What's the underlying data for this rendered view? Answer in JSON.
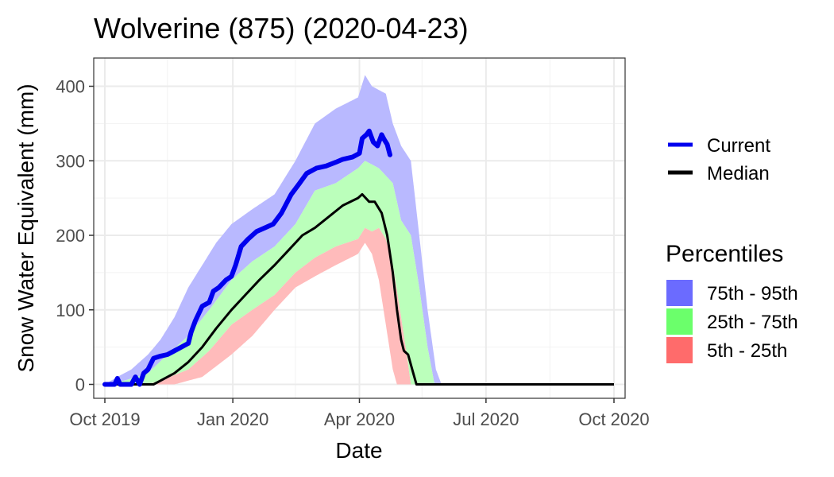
{
  "chart_data": {
    "type": "area",
    "title": "Wolverine (875) (2020-04-23)",
    "xlabel": "Date",
    "ylabel": "Snow Water Equivalent (mm)",
    "xlim": [
      "2019-10-01",
      "2020-10-01"
    ],
    "ylim": [
      0,
      440
    ],
    "x_ticks": [
      "2019-10-01",
      "2020-01-01",
      "2020-04-01",
      "2020-07-01",
      "2020-10-01"
    ],
    "x_tick_labels": [
      "Oct 2019",
      "Jan 2020",
      "Apr 2020",
      "Jul 2020",
      "Oct 2020"
    ],
    "y_ticks": [
      0,
      100,
      200,
      300,
      400
    ],
    "y_tick_labels": [
      "0",
      "100",
      "200",
      "300",
      "400"
    ],
    "grid": true,
    "legend_placement": "right",
    "legend_lines": [
      {
        "label": "Current",
        "color": "#0000ee"
      },
      {
        "label": "Median",
        "color": "#000000"
      }
    ],
    "legend_bands_title": "Percentiles",
    "legend_bands": [
      {
        "label": "75th - 95th",
        "color": "#6b6bff"
      },
      {
        "label": "25th - 75th",
        "color": "#6bff6b"
      },
      {
        "label": "5th - 25th",
        "color": "#ff6b6b"
      }
    ],
    "band_colors": {
      "p95_p75": "#b9b9ff",
      "p75_p25": "#bbffbb",
      "p25_p5": "#ffbbbb"
    },
    "series": [
      {
        "name": "Current",
        "color": "#0000ee",
        "points": [
          [
            "2019-10-01",
            0
          ],
          [
            "2019-10-08",
            0
          ],
          [
            "2019-10-10",
            8
          ],
          [
            "2019-10-12",
            0
          ],
          [
            "2019-10-15",
            0
          ],
          [
            "2019-10-20",
            0
          ],
          [
            "2019-10-23",
            10
          ],
          [
            "2019-10-26",
            0
          ],
          [
            "2019-10-29",
            15
          ],
          [
            "2019-11-01",
            20
          ],
          [
            "2019-11-05",
            35
          ],
          [
            "2019-11-10",
            38
          ],
          [
            "2019-11-15",
            40
          ],
          [
            "2019-11-20",
            45
          ],
          [
            "2019-11-25",
            50
          ],
          [
            "2019-11-30",
            55
          ],
          [
            "2019-12-02",
            70
          ],
          [
            "2019-12-05",
            85
          ],
          [
            "2019-12-10",
            105
          ],
          [
            "2019-12-15",
            110
          ],
          [
            "2019-12-18",
            125
          ],
          [
            "2019-12-22",
            130
          ],
          [
            "2019-12-27",
            140
          ],
          [
            "2019-12-31",
            145
          ],
          [
            "2020-01-03",
            160
          ],
          [
            "2020-01-07",
            185
          ],
          [
            "2020-01-12",
            195
          ],
          [
            "2020-01-18",
            205
          ],
          [
            "2020-01-24",
            210
          ],
          [
            "2020-01-30",
            215
          ],
          [
            "2020-02-05",
            230
          ],
          [
            "2020-02-12",
            255
          ],
          [
            "2020-02-18",
            270
          ],
          [
            "2020-02-23",
            283
          ],
          [
            "2020-03-01",
            290
          ],
          [
            "2020-03-08",
            293
          ],
          [
            "2020-03-15",
            298
          ],
          [
            "2020-03-20",
            302
          ],
          [
            "2020-03-27",
            305
          ],
          [
            "2020-04-01",
            310
          ],
          [
            "2020-04-03",
            330
          ],
          [
            "2020-04-06",
            335
          ],
          [
            "2020-04-08",
            340
          ],
          [
            "2020-04-11",
            325
          ],
          [
            "2020-04-14",
            320
          ],
          [
            "2020-04-17",
            335
          ],
          [
            "2020-04-19",
            328
          ],
          [
            "2020-04-21",
            322
          ],
          [
            "2020-04-23",
            308
          ]
        ]
      },
      {
        "name": "Median",
        "color": "#000000",
        "points": [
          [
            "2019-10-01",
            0
          ],
          [
            "2019-11-05",
            0
          ],
          [
            "2019-11-10",
            5
          ],
          [
            "2019-11-20",
            15
          ],
          [
            "2019-11-30",
            30
          ],
          [
            "2019-12-10",
            50
          ],
          [
            "2019-12-20",
            75
          ],
          [
            "2019-12-31",
            100
          ],
          [
            "2020-01-10",
            120
          ],
          [
            "2020-01-20",
            140
          ],
          [
            "2020-01-31",
            160
          ],
          [
            "2020-02-10",
            180
          ],
          [
            "2020-02-20",
            200
          ],
          [
            "2020-02-29",
            210
          ],
          [
            "2020-03-10",
            225
          ],
          [
            "2020-03-20",
            240
          ],
          [
            "2020-03-31",
            250
          ],
          [
            "2020-04-03",
            255
          ],
          [
            "2020-04-08",
            245
          ],
          [
            "2020-04-12",
            245
          ],
          [
            "2020-04-17",
            230
          ],
          [
            "2020-04-21",
            200
          ],
          [
            "2020-04-25",
            150
          ],
          [
            "2020-04-28",
            100
          ],
          [
            "2020-05-01",
            60
          ],
          [
            "2020-05-03",
            45
          ],
          [
            "2020-05-06",
            40
          ],
          [
            "2020-05-09",
            20
          ],
          [
            "2020-05-12",
            0
          ],
          [
            "2020-10-01",
            0
          ]
        ]
      }
    ],
    "bands": {
      "p95": [
        [
          "2019-10-01",
          0
        ],
        [
          "2019-10-10",
          10
        ],
        [
          "2019-10-20",
          20
        ],
        [
          "2019-11-01",
          40
        ],
        [
          "2019-11-10",
          60
        ],
        [
          "2019-11-20",
          90
        ],
        [
          "2019-11-30",
          130
        ],
        [
          "2019-12-10",
          160
        ],
        [
          "2019-12-20",
          190
        ],
        [
          "2019-12-31",
          215
        ],
        [
          "2020-01-15",
          235
        ],
        [
          "2020-01-31",
          255
        ],
        [
          "2020-02-15",
          300
        ],
        [
          "2020-02-29",
          350
        ],
        [
          "2020-03-15",
          370
        ],
        [
          "2020-03-31",
          385
        ],
        [
          "2020-04-05",
          415
        ],
        [
          "2020-04-10",
          400
        ],
        [
          "2020-04-20",
          390
        ],
        [
          "2020-04-25",
          350
        ],
        [
          "2020-05-01",
          320
        ],
        [
          "2020-05-08",
          300
        ],
        [
          "2020-05-14",
          200
        ],
        [
          "2020-05-20",
          100
        ],
        [
          "2020-05-26",
          20
        ],
        [
          "2020-05-30",
          0
        ],
        [
          "2020-10-01",
          0
        ]
      ],
      "p75": [
        [
          "2019-10-01",
          0
        ],
        [
          "2019-10-15",
          5
        ],
        [
          "2019-11-01",
          15
        ],
        [
          "2019-11-15",
          40
        ],
        [
          "2019-11-30",
          65
        ],
        [
          "2019-12-15",
          100
        ],
        [
          "2019-12-31",
          140
        ],
        [
          "2020-01-15",
          165
        ],
        [
          "2020-01-31",
          185
        ],
        [
          "2020-02-15",
          215
        ],
        [
          "2020-02-29",
          260
        ],
        [
          "2020-03-15",
          270
        ],
        [
          "2020-03-31",
          290
        ],
        [
          "2020-04-05",
          300
        ],
        [
          "2020-04-15",
          290
        ],
        [
          "2020-04-25",
          270
        ],
        [
          "2020-05-01",
          220
        ],
        [
          "2020-05-08",
          200
        ],
        [
          "2020-05-14",
          130
        ],
        [
          "2020-05-20",
          50
        ],
        [
          "2020-05-25",
          0
        ],
        [
          "2020-10-01",
          0
        ]
      ],
      "p25": [
        [
          "2019-10-01",
          0
        ],
        [
          "2019-11-01",
          0
        ],
        [
          "2019-11-10",
          5
        ],
        [
          "2019-11-30",
          20
        ],
        [
          "2019-12-15",
          45
        ],
        [
          "2019-12-31",
          80
        ],
        [
          "2020-01-15",
          100
        ],
        [
          "2020-01-31",
          120
        ],
        [
          "2020-02-15",
          150
        ],
        [
          "2020-02-29",
          170
        ],
        [
          "2020-03-15",
          185
        ],
        [
          "2020-03-31",
          195
        ],
        [
          "2020-04-05",
          210
        ],
        [
          "2020-04-10",
          205
        ],
        [
          "2020-04-15",
          210
        ],
        [
          "2020-04-20",
          195
        ],
        [
          "2020-04-25",
          160
        ],
        [
          "2020-05-01",
          90
        ],
        [
          "2020-05-05",
          40
        ],
        [
          "2020-05-08",
          0
        ],
        [
          "2020-10-01",
          0
        ]
      ],
      "p5": [
        [
          "2019-10-01",
          0
        ],
        [
          "2019-11-20",
          0
        ],
        [
          "2019-12-10",
          10
        ],
        [
          "2019-12-31",
          40
        ],
        [
          "2020-01-15",
          65
        ],
        [
          "2020-01-31",
          100
        ],
        [
          "2020-02-15",
          130
        ],
        [
          "2020-02-29",
          145
        ],
        [
          "2020-03-15",
          160
        ],
        [
          "2020-03-31",
          175
        ],
        [
          "2020-04-05",
          190
        ],
        [
          "2020-04-10",
          175
        ],
        [
          "2020-04-15",
          140
        ],
        [
          "2020-04-20",
          80
        ],
        [
          "2020-04-25",
          20
        ],
        [
          "2020-04-28",
          0
        ],
        [
          "2020-10-01",
          0
        ]
      ]
    }
  }
}
